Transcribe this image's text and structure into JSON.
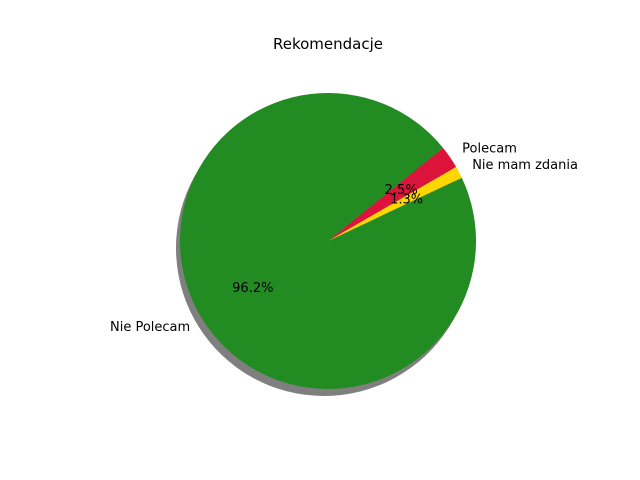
{
  "chart_data": {
    "type": "pie",
    "title": "Rekomendacje",
    "slices": [
      {
        "label": "Polecam",
        "value": 2.5,
        "pct_label": "2.5%",
        "color": "#dc143c"
      },
      {
        "label": "Nie Polecam",
        "value": 96.2,
        "pct_label": "96.2%",
        "color": "#228b22"
      },
      {
        "label": "Nie mam zdania",
        "value": 1.3,
        "pct_label": "1.3%",
        "color": "#ffd700"
      }
    ],
    "start_angle_deg": 30,
    "direction": "counterclockwise",
    "shadow": true
  }
}
